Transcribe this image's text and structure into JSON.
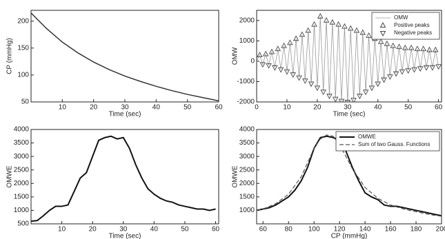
{
  "chart_data": [
    {
      "type": "line",
      "ylabel": "CP (mmHg)",
      "xlabel": "Time (sec)",
      "xlim": [
        0,
        60
      ],
      "xticks": [
        10,
        20,
        30,
        40,
        50,
        60
      ],
      "ylim": [
        50,
        220
      ],
      "yticks": [
        50,
        100,
        150,
        200
      ],
      "series": [
        {
          "name": "CP",
          "color": "#333333",
          "width": 1.5,
          "linestyle": "solid",
          "x": [
            0,
            5,
            10,
            15,
            20,
            25,
            30,
            35,
            40,
            45,
            50,
            55,
            60
          ],
          "values": [
            215,
            186,
            161,
            141,
            124,
            110,
            98,
            88,
            79,
            71,
            64,
            58,
            52
          ]
        }
      ]
    },
    {
      "type": "line",
      "ylabel": "OMW",
      "xlabel": "Time (sec)",
      "legend": "northeast",
      "xlim": [
        0,
        61
      ],
      "xticks": [
        0,
        10,
        20,
        30,
        40,
        50,
        60
      ],
      "ylim": [
        -2000,
        2500
      ],
      "yticks": [
        -2000,
        -1000,
        0,
        1000,
        2000
      ],
      "series": [
        {
          "name": "OMW",
          "color": "#999999",
          "width": 0.8,
          "linestyle": "solid",
          "x": [
            0,
            1,
            2,
            3,
            4,
            5,
            6,
            7,
            8,
            9,
            10,
            11,
            12,
            13,
            14,
            15,
            16,
            17,
            18,
            19,
            20,
            21,
            22,
            23,
            24,
            25,
            26,
            27,
            28,
            29,
            30,
            31,
            32,
            33,
            34,
            35,
            36,
            37,
            38,
            39,
            40,
            41,
            42,
            43,
            44,
            45,
            46,
            47,
            48,
            49,
            50,
            51,
            52,
            53,
            54,
            55,
            56,
            57,
            58,
            59,
            60
          ],
          "values": [
            0,
            300,
            -150,
            350,
            -200,
            450,
            -300,
            600,
            -400,
            750,
            -500,
            900,
            -650,
            1100,
            -800,
            1300,
            -950,
            1500,
            -1100,
            1800,
            -1300,
            2200,
            -1500,
            2000,
            -1700,
            1900,
            -1850,
            1800,
            -1950,
            1700,
            -2000,
            1600,
            -1900,
            1500,
            -1700,
            1400,
            -1500,
            1250,
            -1300,
            1100,
            -1100,
            950,
            -900,
            850,
            -750,
            750,
            -600,
            700,
            -500,
            650,
            -450,
            650,
            -400,
            600,
            -350,
            600,
            -300,
            550,
            -300,
            550,
            -250
          ]
        },
        {
          "name": "Positive peaks",
          "color": "#444444",
          "marker": "triangle-up",
          "linestyle": "none",
          "x": [
            1,
            3,
            5,
            7,
            9,
            11,
            13,
            15,
            17,
            19,
            21,
            23,
            25,
            27,
            29,
            31,
            33,
            35,
            37,
            39,
            41,
            43,
            45,
            47,
            49,
            51,
            53,
            55,
            57,
            59
          ],
          "values": [
            300,
            350,
            450,
            600,
            750,
            900,
            1100,
            1300,
            1500,
            1800,
            2200,
            2000,
            1900,
            1800,
            1700,
            1600,
            1500,
            1400,
            1250,
            1100,
            950,
            850,
            750,
            700,
            650,
            650,
            600,
            600,
            550,
            550
          ]
        },
        {
          "name": "Negative peaks",
          "color": "#444444",
          "marker": "triangle-down",
          "linestyle": "none",
          "x": [
            2,
            4,
            6,
            8,
            10,
            12,
            14,
            16,
            18,
            20,
            22,
            24,
            26,
            28,
            30,
            32,
            34,
            36,
            38,
            40,
            42,
            44,
            46,
            48,
            50,
            52,
            54,
            56,
            58,
            60
          ],
          "values": [
            -150,
            -200,
            -300,
            -400,
            -500,
            -650,
            -800,
            -950,
            -1100,
            -1300,
            -1500,
            -1700,
            -1850,
            -1950,
            -2000,
            -1900,
            -1700,
            -1500,
            -1300,
            -1100,
            -900,
            -750,
            -600,
            -500,
            -450,
            -400,
            -350,
            -300,
            -300,
            -250
          ]
        }
      ]
    },
    {
      "type": "line",
      "ylabel": "OMWE",
      "xlabel": "Time (sec)",
      "xlim": [
        0,
        61
      ],
      "xticks": [
        10,
        20,
        30,
        40,
        50,
        60
      ],
      "ylim": [
        500,
        4000
      ],
      "yticks": [
        500,
        1000,
        1500,
        2000,
        2500,
        3000,
        3500,
        4000
      ],
      "series": [
        {
          "name": "OMWE",
          "color": "#111111",
          "width": 2,
          "linestyle": "solid",
          "x": [
            0,
            2,
            4,
            6,
            8,
            10,
            12,
            14,
            16,
            18,
            20,
            22,
            24,
            26,
            28,
            30,
            32,
            34,
            36,
            38,
            40,
            42,
            44,
            46,
            48,
            50,
            52,
            54,
            56,
            58,
            60
          ],
          "values": [
            600,
            620,
            800,
            1000,
            1150,
            1150,
            1200,
            1700,
            2200,
            2400,
            3000,
            3600,
            3700,
            3750,
            3650,
            3700,
            3300,
            2700,
            2200,
            1800,
            1600,
            1450,
            1350,
            1300,
            1200,
            1150,
            1100,
            1050,
            1050,
            1000,
            1050
          ]
        }
      ]
    },
    {
      "type": "line",
      "ylabel": "OMWE",
      "xlabel": "CP (mmHg)",
      "legend": "northeast",
      "xlim": [
        55,
        200
      ],
      "xticks": [
        60,
        80,
        100,
        120,
        140,
        160,
        180,
        200
      ],
      "ylim": [
        500,
        4000
      ],
      "yticks": [
        1000,
        1500,
        2000,
        2500,
        3000,
        3500,
        4000
      ],
      "series": [
        {
          "name": "OMWE",
          "color": "#111111",
          "width": 2,
          "linestyle": "solid",
          "x": [
            55,
            60,
            65,
            70,
            75,
            80,
            85,
            90,
            95,
            100,
            105,
            110,
            115,
            120,
            125,
            130,
            135,
            140,
            145,
            150,
            155,
            160,
            165,
            170,
            175,
            180,
            185,
            190,
            195,
            200
          ],
          "values": [
            1000,
            1050,
            1100,
            1200,
            1350,
            1500,
            1750,
            2100,
            2600,
            3300,
            3700,
            3750,
            3700,
            3600,
            3200,
            2600,
            2100,
            1650,
            1500,
            1400,
            1200,
            1150,
            1150,
            1100,
            1050,
            1000,
            950,
            900,
            850,
            800
          ]
        },
        {
          "name": "Sum of two Gauss. Functions",
          "color": "#555555",
          "width": 1.2,
          "linestyle": "dashed",
          "x": [
            55,
            60,
            70,
            80,
            90,
            100,
            105,
            110,
            115,
            120,
            130,
            140,
            150,
            160,
            170,
            180,
            190,
            200
          ],
          "values": [
            1000,
            1050,
            1250,
            1600,
            2250,
            3300,
            3650,
            3800,
            3750,
            3450,
            2550,
            1850,
            1450,
            1200,
            1050,
            950,
            850,
            780
          ]
        }
      ]
    }
  ]
}
